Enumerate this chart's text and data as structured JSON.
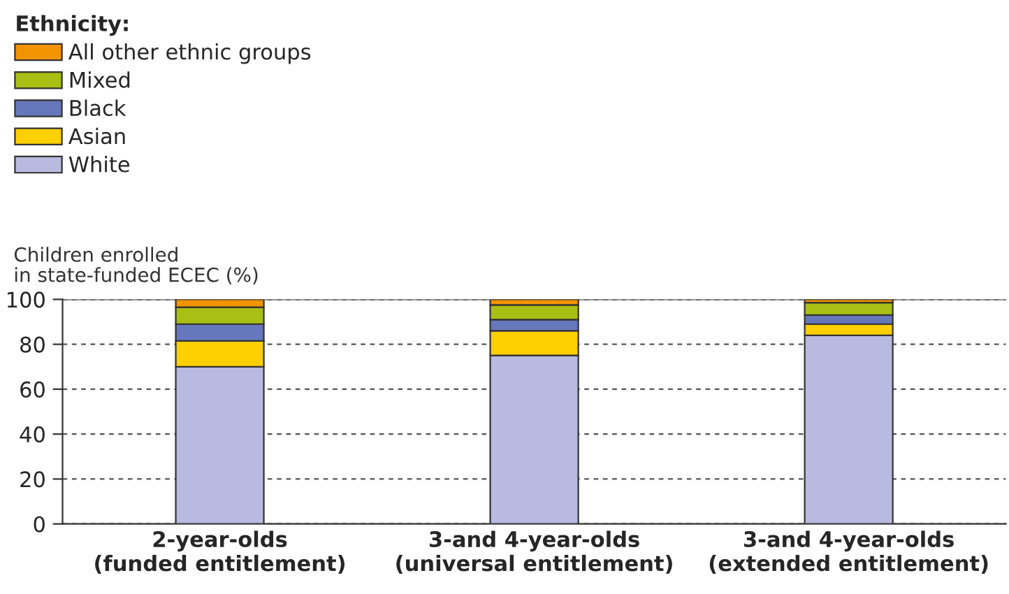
{
  "chart_data": {
    "type": "bar",
    "stacked": true,
    "legend_title": "Ethnicity:",
    "ylabel": "Children enrolled\nin state-funded ECEC (%)",
    "categories": [
      "2-year-olds\n(funded entitlement)",
      "3-and 4-year-olds\n(universal entitlement)",
      "3-and 4-year-olds\n(extended entitlement)"
    ],
    "series": [
      {
        "name": "White",
        "color": "#b8badf",
        "values": [
          70,
          75,
          84
        ]
      },
      {
        "name": "Asian",
        "color": "#ffd000",
        "values": [
          11.5,
          11,
          5
        ]
      },
      {
        "name": "Black",
        "color": "#6677bb",
        "values": [
          7.5,
          5,
          4
        ]
      },
      {
        "name": "Mixed",
        "color": "#aabf14",
        "values": [
          7.5,
          6.5,
          5.5
        ]
      },
      {
        "name": "All other ethnic groups",
        "color": "#f29400",
        "values": [
          3.5,
          2.5,
          1.5
        ]
      }
    ],
    "ylim": [
      0,
      100
    ],
    "yticks": [
      0,
      20,
      40,
      60,
      80,
      100
    ],
    "grid": "y",
    "legend": "top left"
  }
}
